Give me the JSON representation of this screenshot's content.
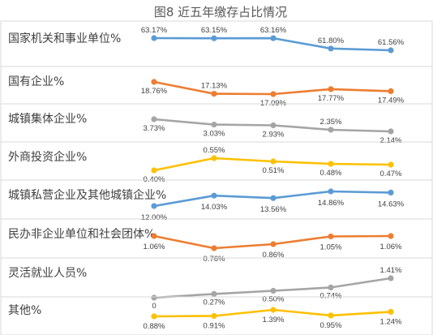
{
  "chart_data": {
    "type": "line",
    "title": "图8 近五年缴存占比情况",
    "categories": [
      "",
      "",
      "",
      "",
      ""
    ],
    "unit": "%",
    "series": [
      {
        "name": "国家机关和事业单位%",
        "color": "#5b9bd5",
        "values": [
          63.17,
          63.15,
          63.16,
          61.8,
          61.56
        ],
        "labels": [
          "63.17%",
          "63.15%",
          "63.16%",
          "61.80%",
          "61.56%"
        ]
      },
      {
        "name": "国有企业%",
        "color": "#ed7d31",
        "values": [
          18.76,
          17.13,
          17.09,
          17.77,
          17.49
        ],
        "labels": [
          "18.76%",
          "17.13%",
          "17.09%",
          "17.77%",
          "17.49%"
        ]
      },
      {
        "name": "城镇集体企业%",
        "color": "#a5a5a5",
        "values": [
          3.73,
          3.03,
          2.93,
          2.35,
          2.14
        ],
        "labels": [
          "3.73%",
          "3.03%",
          "2.93%",
          "2.35%",
          "2.14%"
        ]
      },
      {
        "name": "外商投资企业%",
        "color": "#ffc000",
        "values": [
          0.4,
          0.55,
          0.51,
          0.48,
          0.47
        ],
        "labels": [
          "0.40%",
          "0.55%",
          "0.51%",
          "0.48%",
          "0.47%"
        ]
      },
      {
        "name": "城镇私营企业及其他城镇企业%",
        "color": "#5b9bd5",
        "values": [
          12.0,
          14.03,
          13.56,
          14.86,
          14.63
        ],
        "labels": [
          "12.00%",
          "14.03%",
          "13.56%",
          "14.86%",
          "14.63%"
        ]
      },
      {
        "name": "民办非企业单位和社会团体%",
        "color": "#ed7d31",
        "values": [
          1.06,
          0.76,
          0.86,
          1.05,
          1.06
        ],
        "labels": [
          "1.06%",
          "0.76%",
          "0.86%",
          "1.05%",
          "1.06%"
        ]
      },
      {
        "name": "灵活就业人员%",
        "color": "#a5a5a5",
        "values": [
          0,
          0.27,
          0.5,
          0.74,
          1.41
        ],
        "labels": [
          "0",
          "0.27%",
          "0.50%",
          "0.74%",
          "1.41%"
        ]
      },
      {
        "name": "其他%",
        "color": "#ffc000",
        "values": [
          0.88,
          0.91,
          1.39,
          0.95,
          1.24
        ],
        "labels": [
          "0.88%",
          "0.91%",
          "1.39%",
          "0.95%",
          "1.24%"
        ]
      }
    ]
  }
}
